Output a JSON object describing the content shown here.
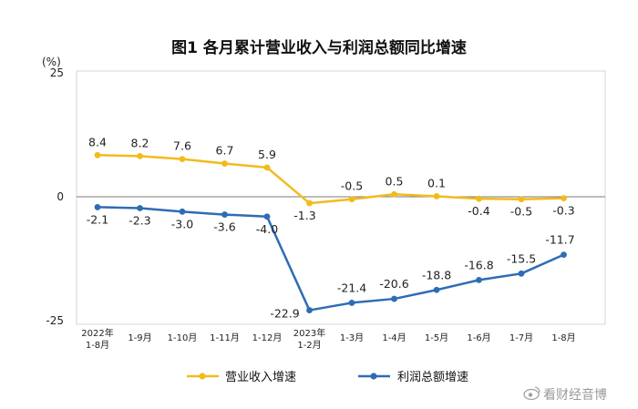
{
  "chart_data": {
    "type": "line",
    "title": "图1  各月累计营业收入与利润总额同比增速",
    "y_unit": "(%)",
    "ylim": [
      -25,
      25
    ],
    "y_ticks": [
      "25",
      "0",
      "-25"
    ],
    "categories": [
      "2022年 1-8月",
      "1-9月",
      "1-10月",
      "1-11月",
      "1-12月",
      "2023年 1-2月",
      "1-3月",
      "1-4月",
      "1-5月",
      "1-6月",
      "1-7月",
      "1-8月"
    ],
    "category_lines": [
      [
        "2022年",
        "1-8月"
      ],
      [
        "1-9月"
      ],
      [
        "1-10月"
      ],
      [
        "1-11月"
      ],
      [
        "1-12月"
      ],
      [
        "2023年",
        "1-2月"
      ],
      [
        "1-3月"
      ],
      [
        "1-4月"
      ],
      [
        "1-5月"
      ],
      [
        "1-6月"
      ],
      [
        "1-7月"
      ],
      [
        "1-8月"
      ]
    ],
    "series": [
      {
        "name": "营业收入增速",
        "color": "#F2BB1D",
        "values": [
          8.4,
          8.2,
          7.6,
          6.7,
          5.9,
          -1.3,
          -0.5,
          0.5,
          0.1,
          -0.4,
          -0.5,
          -0.3
        ],
        "labels": [
          "8.4",
          "8.2",
          "7.6",
          "6.7",
          "5.9",
          "-1.3",
          "-0.5",
          "0.5",
          "0.1",
          "-0.4",
          "-0.5",
          "-0.3"
        ]
      },
      {
        "name": "利润总额增速",
        "color": "#2E6CB5",
        "values": [
          -2.1,
          -2.3,
          -3.0,
          -3.6,
          -4.0,
          -22.9,
          -21.4,
          -20.6,
          -18.8,
          -16.8,
          -15.5,
          -11.7
        ],
        "labels": [
          "-2.1",
          "-2.3",
          "-3.0",
          "-3.6",
          "-4.0",
          "-22.9",
          "-21.4",
          "-20.6",
          "-18.8",
          "-16.8",
          "-15.5",
          "-11.7"
        ]
      }
    ],
    "grid": false,
    "legend_position": "bottom"
  },
  "watermark": {
    "icon": "weibo-icon",
    "text": "看财经音博"
  }
}
